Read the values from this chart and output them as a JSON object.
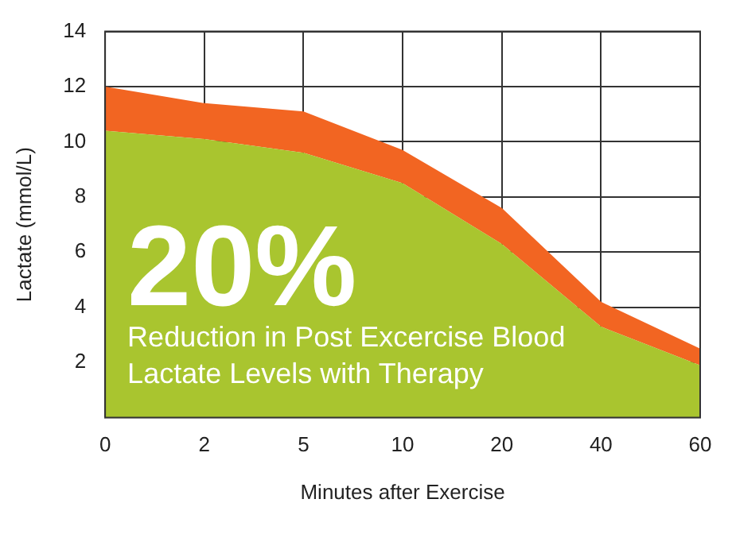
{
  "chart_data": {
    "type": "area",
    "stacked": true,
    "xlabel": "Minutes after Exercise",
    "ylabel": "Lactate (mmol/L)",
    "categories": [
      "0",
      "2",
      "5",
      "10",
      "20",
      "40",
      "60"
    ],
    "series": [
      {
        "color": "#a9c52f",
        "values": [
          10.4,
          10.1,
          9.6,
          8.5,
          6.3,
          3.3,
          1.9
        ]
      },
      {
        "color": "#f26522",
        "values": [
          1.6,
          1.3,
          1.5,
          1.2,
          1.3,
          0.9,
          0.6
        ]
      }
    ],
    "ylim": [
      0,
      14
    ],
    "yticks": [
      2,
      4,
      6,
      8,
      10,
      12,
      14
    ],
    "grid": true,
    "legend": false,
    "annotations": [
      "20%",
      "Reduction in Post Excercise Blood Lactate Levels with Therapy"
    ]
  }
}
